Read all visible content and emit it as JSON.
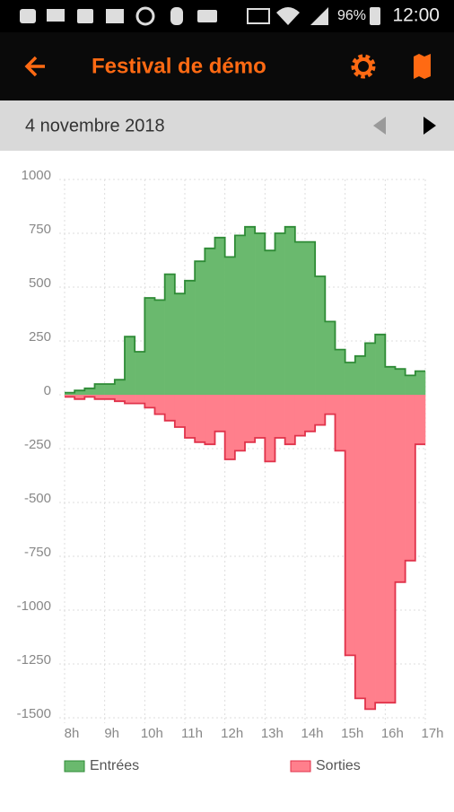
{
  "status_bar": {
    "battery": "96%",
    "time": "12:00"
  },
  "header": {
    "title": "Festival de démo"
  },
  "date_bar": {
    "date": "4 novembre 2018"
  },
  "chart_data": {
    "type": "step-area",
    "x": [
      8,
      8.25,
      8.5,
      8.75,
      9,
      9.25,
      9.5,
      9.75,
      10,
      10.25,
      10.5,
      10.75,
      11,
      11.25,
      11.5,
      11.75,
      12,
      12.25,
      12.5,
      12.75,
      13,
      13.25,
      13.5,
      13.75,
      14,
      14.25,
      14.5,
      14.75,
      15,
      15.25,
      15.5,
      15.75,
      16,
      16.25,
      16.5,
      16.75
    ],
    "series": [
      {
        "name": "Entrées",
        "color": "#6ab96e",
        "line_color": "#2e8b36",
        "values": [
          10,
          20,
          30,
          50,
          50,
          70,
          270,
          200,
          450,
          440,
          560,
          470,
          530,
          620,
          680,
          730,
          640,
          740,
          780,
          750,
          670,
          750,
          780,
          710,
          710,
          550,
          340,
          210,
          150,
          180,
          240,
          280,
          130,
          120,
          90,
          110
        ]
      },
      {
        "name": "Sorties",
        "color": "#ff7f8c",
        "line_color": "#e0324a",
        "values": [
          -10,
          -20,
          -10,
          -20,
          -20,
          -30,
          -40,
          -40,
          -60,
          -90,
          -120,
          -150,
          -200,
          -220,
          -230,
          -170,
          -300,
          -260,
          -220,
          -200,
          -310,
          -200,
          -230,
          -190,
          -170,
          -140,
          -90,
          -260,
          -1210,
          -1410,
          -1460,
          -1430,
          -1430,
          -870,
          -770,
          -230
        ]
      }
    ],
    "xlim": [
      8,
      17
    ],
    "xticks": [
      {
        "value": 8,
        "label": "8h"
      },
      {
        "value": 9,
        "label": "9h"
      },
      {
        "value": 10,
        "label": "10h"
      },
      {
        "value": 11,
        "label": "11h"
      },
      {
        "value": 12,
        "label": "12h"
      },
      {
        "value": 13,
        "label": "13h"
      },
      {
        "value": 14,
        "label": "14h"
      },
      {
        "value": 15,
        "label": "15h"
      },
      {
        "value": 16,
        "label": "16h"
      },
      {
        "value": 17,
        "label": "17h"
      }
    ],
    "ylim": [
      -1500,
      1000
    ],
    "yticks": [
      -1500,
      -1250,
      -1000,
      -750,
      -500,
      -250,
      0,
      250,
      500,
      750,
      1000
    ],
    "grid": true
  }
}
